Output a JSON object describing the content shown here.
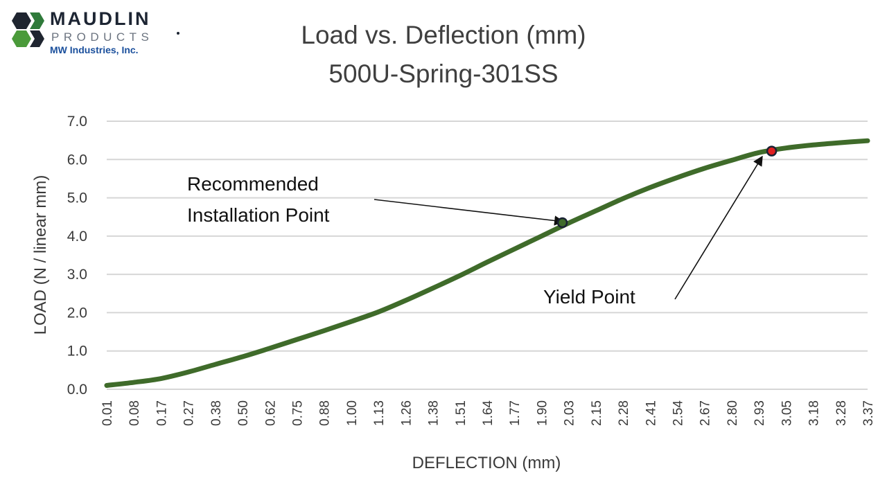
{
  "logo": {
    "name": "MAUDLIN",
    "sub": "PRODUCTS",
    "company": "MW Industries, Inc."
  },
  "chart_data": {
    "type": "line",
    "title": "Load vs. Deflection (mm)",
    "subtitle": "500U-Spring-301SS",
    "xlabel": "DEFLECTION (mm)",
    "ylabel": "LOAD (N / linear mm)",
    "ylim": [
      0,
      7
    ],
    "yticks": [
      "0.0",
      "1.0",
      "2.0",
      "3.0",
      "4.0",
      "5.0",
      "6.0",
      "7.0"
    ],
    "grid": true,
    "legend": "none",
    "line_color": "#3f6b2a",
    "categories": [
      "0.01",
      "0.08",
      "0.17",
      "0.27",
      "0.38",
      "0.50",
      "0.62",
      "0.75",
      "0.88",
      "1.00",
      "1.13",
      "1.26",
      "1.38",
      "1.51",
      "1.64",
      "1.77",
      "1.90",
      "2.03",
      "2.15",
      "2.28",
      "2.41",
      "2.54",
      "2.67",
      "2.80",
      "2.93",
      "3.05",
      "3.18",
      "3.28",
      "3.37"
    ],
    "series": [
      {
        "values": [
          0.1,
          0.18,
          0.28,
          0.45,
          0.65,
          0.85,
          1.07,
          1.3,
          1.53,
          1.77,
          2.02,
          2.32,
          2.64,
          2.97,
          3.32,
          3.66,
          4.0,
          4.34,
          4.66,
          4.98,
          5.27,
          5.53,
          5.77,
          5.98,
          6.18,
          6.3,
          6.38,
          6.44,
          6.49
        ]
      }
    ],
    "annotations": [
      {
        "text_lines": [
          "Recommended",
          "Installation Point"
        ],
        "x": "2.10",
        "y": 4.35,
        "marker_color": "#3f6b2a"
      },
      {
        "text_lines": [
          "Yield Point"
        ],
        "x": "3.06",
        "y": 6.22,
        "marker_color": "#e02020"
      }
    ]
  }
}
